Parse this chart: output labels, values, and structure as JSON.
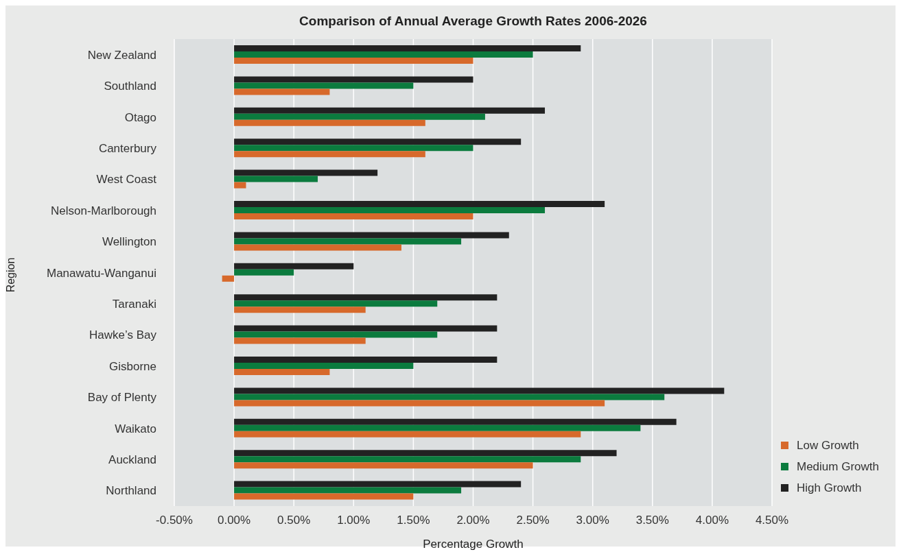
{
  "chart_data": {
    "type": "bar",
    "orientation": "horizontal",
    "title": "Comparison of Annual Average Growth Rates 2006-2026",
    "xlabel": "Percentage Growth",
    "ylabel": "Region",
    "categories": [
      "New Zealand",
      "Southland",
      "Otago",
      "Canterbury",
      "West Coast",
      "Nelson-Marlborough",
      "Wellington",
      "Manawatu-Wanganui",
      "Taranaki",
      "Hawke’s Bay",
      "Gisborne",
      "Bay of Plenty",
      "Waikato",
      "Auckland",
      "Northland"
    ],
    "series": [
      {
        "name": "Low Growth",
        "color": "#d7692b",
        "values": [
          2.0,
          0.8,
          1.6,
          1.6,
          0.1,
          2.0,
          1.4,
          -0.1,
          1.1,
          1.1,
          0.8,
          3.1,
          2.9,
          2.5,
          1.5
        ]
      },
      {
        "name": "Medium Growth",
        "color": "#0b7b3e",
        "values": [
          2.5,
          1.5,
          2.1,
          2.0,
          0.7,
          2.6,
          1.9,
          0.5,
          1.7,
          1.7,
          1.5,
          3.6,
          3.4,
          2.9,
          1.9
        ]
      },
      {
        "name": "High Growth",
        "color": "#222222",
        "values": [
          2.9,
          2.0,
          2.6,
          2.4,
          1.2,
          3.1,
          2.3,
          1.0,
          2.2,
          2.2,
          2.2,
          4.1,
          3.7,
          3.2,
          2.4
        ]
      }
    ],
    "xlim": [
      -0.5,
      4.5
    ],
    "xticks": [
      {
        "value": -0.5,
        "label": "-0.50%"
      },
      {
        "value": 0,
        "label": "0.00%"
      },
      {
        "value": 0.5,
        "label": "0.50%"
      },
      {
        "value": 1,
        "label": "1.00%"
      },
      {
        "value": 1.5,
        "label": "1.50%"
      },
      {
        "value": 2,
        "label": "2.00%"
      },
      {
        "value": 2.5,
        "label": "2.50%"
      },
      {
        "value": 3,
        "label": "3.00%"
      },
      {
        "value": 3.5,
        "label": "3.50%"
      },
      {
        "value": 4,
        "label": "4.00%"
      },
      {
        "value": 4.5,
        "label": "4.50%"
      }
    ],
    "grid": "x",
    "legend": "bottom right"
  }
}
